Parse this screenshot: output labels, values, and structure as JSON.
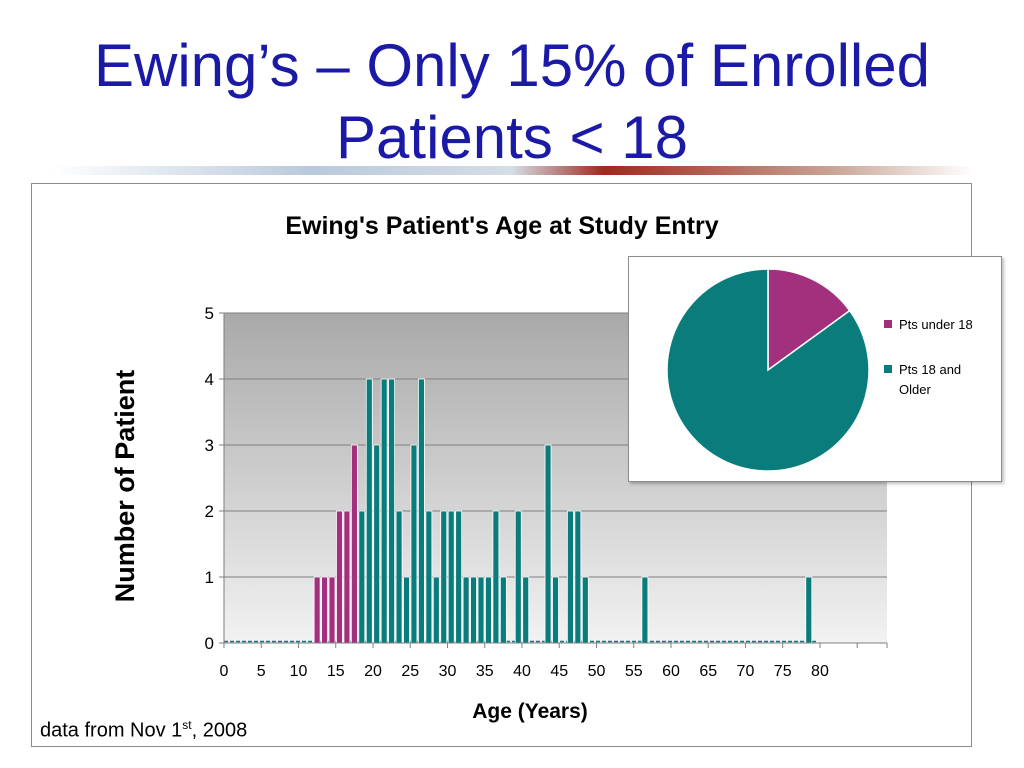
{
  "slide": {
    "title_line1": "Ewing’s – Only 15% of Enrolled",
    "title_line2": "Patients < 18"
  },
  "footnote": {
    "prefix": "data from Nov 1",
    "sup": "st",
    "suffix": ", 2008"
  },
  "colors": {
    "title": "#1a1aa6",
    "under18": "#a3307c",
    "adult": "#0a7c7c",
    "plot_bg_top": "#a9a9a9",
    "plot_bg_bottom": "#f2f2f2"
  },
  "chart_data": [
    {
      "type": "bar",
      "title": "Ewing's Patient's Age at Study Entry",
      "xlabel": "Age (Years)",
      "ylabel": "Number of Patient",
      "ylim": [
        0,
        5
      ],
      "yticks": [
        0,
        1,
        2,
        3,
        4,
        5
      ],
      "xlim": [
        0,
        89
      ],
      "xticks": [
        0,
        5,
        10,
        15,
        20,
        25,
        30,
        35,
        40,
        45,
        50,
        55,
        60,
        65,
        70,
        75,
        80
      ],
      "grid": true,
      "series": [
        {
          "name": "Pts under 18",
          "color": "#a3307c",
          "x": [
            12,
            13,
            14,
            15,
            16,
            17
          ],
          "values": [
            1,
            1,
            1,
            2,
            2,
            3
          ]
        },
        {
          "name": "Pts 18 and Older",
          "color": "#0a7c7c",
          "x": [
            18,
            19,
            20,
            21,
            22,
            23,
            24,
            25,
            26,
            27,
            28,
            29,
            30,
            31,
            32,
            33,
            34,
            35,
            36,
            37,
            38,
            39,
            40,
            41,
            42,
            43,
            44,
            45,
            46,
            47,
            48,
            56,
            78
          ],
          "values": [
            2,
            4,
            3,
            4,
            4,
            2,
            1,
            3,
            4,
            2,
            1,
            2,
            2,
            2,
            1,
            1,
            1,
            1,
            2,
            1,
            0,
            2,
            1,
            0,
            0,
            3,
            1,
            0,
            2,
            2,
            1,
            1,
            1
          ]
        }
      ]
    },
    {
      "type": "pie",
      "slices": [
        {
          "label_line1": "Pts under",
          "label_line2": "18",
          "legend": "Pts under 18",
          "value": 15,
          "pct": "15%",
          "color": "#a3307c"
        },
        {
          "label_line1": "Pts 18 and",
          "label_line2": "Older",
          "legend": "Pts 18 and Older",
          "legend_line1": "Pts 18 and",
          "legend_line2": "Older",
          "value": 85,
          "pct": "85%",
          "color": "#0a7c7c"
        }
      ],
      "legend_position": "right"
    }
  ]
}
